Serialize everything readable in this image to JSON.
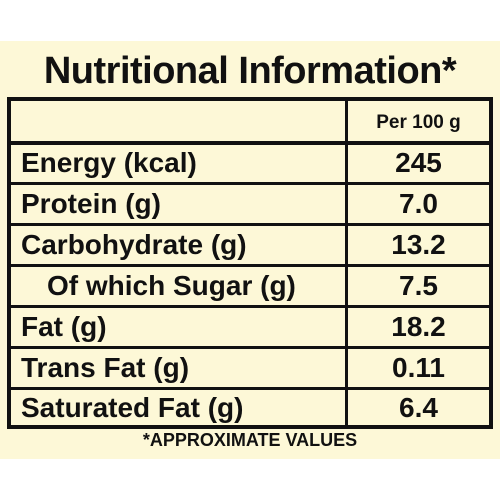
{
  "title": "Nutritional Information*",
  "column_header": "Per 100 g",
  "rows": [
    {
      "label": "Energy (kcal)",
      "value": "245"
    },
    {
      "label": "Protein (g)",
      "value": "7.0"
    },
    {
      "label": "Carbohydrate (g)",
      "value": "13.2"
    },
    {
      "label": "Of which Sugar (g)",
      "value": "7.5"
    },
    {
      "label": "Fat (g)",
      "value": "18.2"
    },
    {
      "label": "Trans Fat (g)",
      "value": "0.11"
    },
    {
      "label": "Saturated Fat (g)",
      "value": "6.4"
    }
  ],
  "footnote": "*APPROXIMATE VALUES",
  "colors": {
    "background": "#fdf8d7",
    "lines": "#111111",
    "text": "#111111"
  }
}
